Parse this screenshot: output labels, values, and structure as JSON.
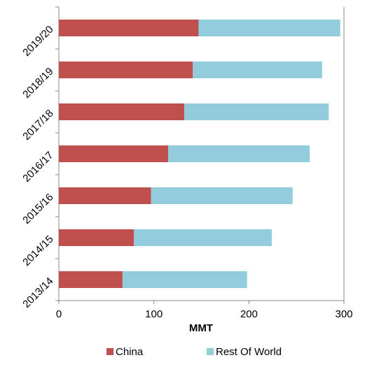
{
  "chart_data": {
    "type": "bar",
    "orientation": "horizontal",
    "stacked": true,
    "x_label": "MMT",
    "categories": [
      "2013/14",
      "2014/15",
      "2015/16",
      "2016/17",
      "2017/18",
      "2018/19",
      "2019/20"
    ],
    "series": [
      {
        "name": "China",
        "color": "#c0504d",
        "values": [
          67,
          79,
          97,
          115,
          132,
          141,
          147
        ]
      },
      {
        "name": "Rest Of World",
        "color": "#93cddd",
        "values": [
          131,
          145,
          149,
          149,
          152,
          136,
          149
        ]
      }
    ],
    "xlim": [
      0,
      300
    ],
    "xticks": [
      0,
      100,
      200,
      300
    ],
    "grid": false,
    "legend": "bottom"
  }
}
